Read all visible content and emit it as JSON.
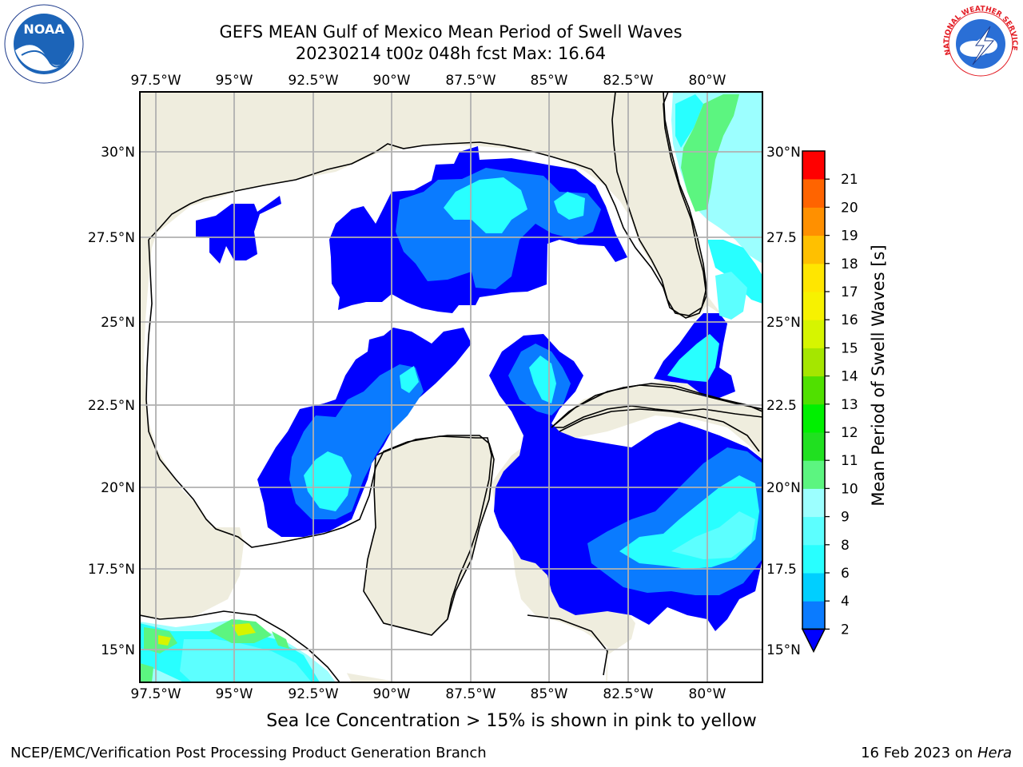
{
  "title_line1": "GEFS MEAN Gulf of Mexico Mean Period of Swell Waves",
  "title_line2": "20230214 t00z 048h fcst   Max: 16.64",
  "lon_ticks": [
    "97.5°W",
    "95°W",
    "92.5°W",
    "90°W",
    "87.5°W",
    "85°W",
    "82.5°W",
    "80°W"
  ],
  "lat_ticks_left": [
    "30°N",
    "27.5°N",
    "25°N",
    "22.5°N",
    "20°N",
    "17.5°N",
    "15°N"
  ],
  "lat_ticks_right": [
    "30°N",
    "27.5",
    "25°N",
    "22.5",
    "20°N",
    "17.5",
    "15°N"
  ],
  "colorbar": {
    "label": "Mean Period of Swell Waves [s]",
    "ticks": [
      "2",
      "4",
      "6",
      "8",
      "9",
      "10",
      "11",
      "12",
      "13",
      "14",
      "15",
      "16",
      "17",
      "18",
      "19",
      "20",
      "21"
    ],
    "colors": [
      "#0a7bff",
      "#00cfff",
      "#28ffff",
      "#5cffff",
      "#9cffff",
      "#5cf580",
      "#20e020",
      "#00f000",
      "#50e000",
      "#a5e600",
      "#d6f500",
      "#f7f200",
      "#ffe600",
      "#ffc000",
      "#ff9000",
      "#ff6400",
      "#ff3800",
      "#ff0000"
    ],
    "under_color": "#0000ff"
  },
  "note": "Sea Ice Concentration > 15% is shown in pink to yellow",
  "footer_left": "NCEP/EMC/Verification Post Processing Product Generation Branch",
  "footer_date": "16 Feb 2023 on ",
  "footer_host": "Hera",
  "logos": {
    "left": "NOAA",
    "right": "NATIONAL WEATHER SERVICE"
  },
  "colors": {
    "land": "#efedde",
    "ocean": "#ffffff",
    "grid": "#b0b0b0"
  }
}
